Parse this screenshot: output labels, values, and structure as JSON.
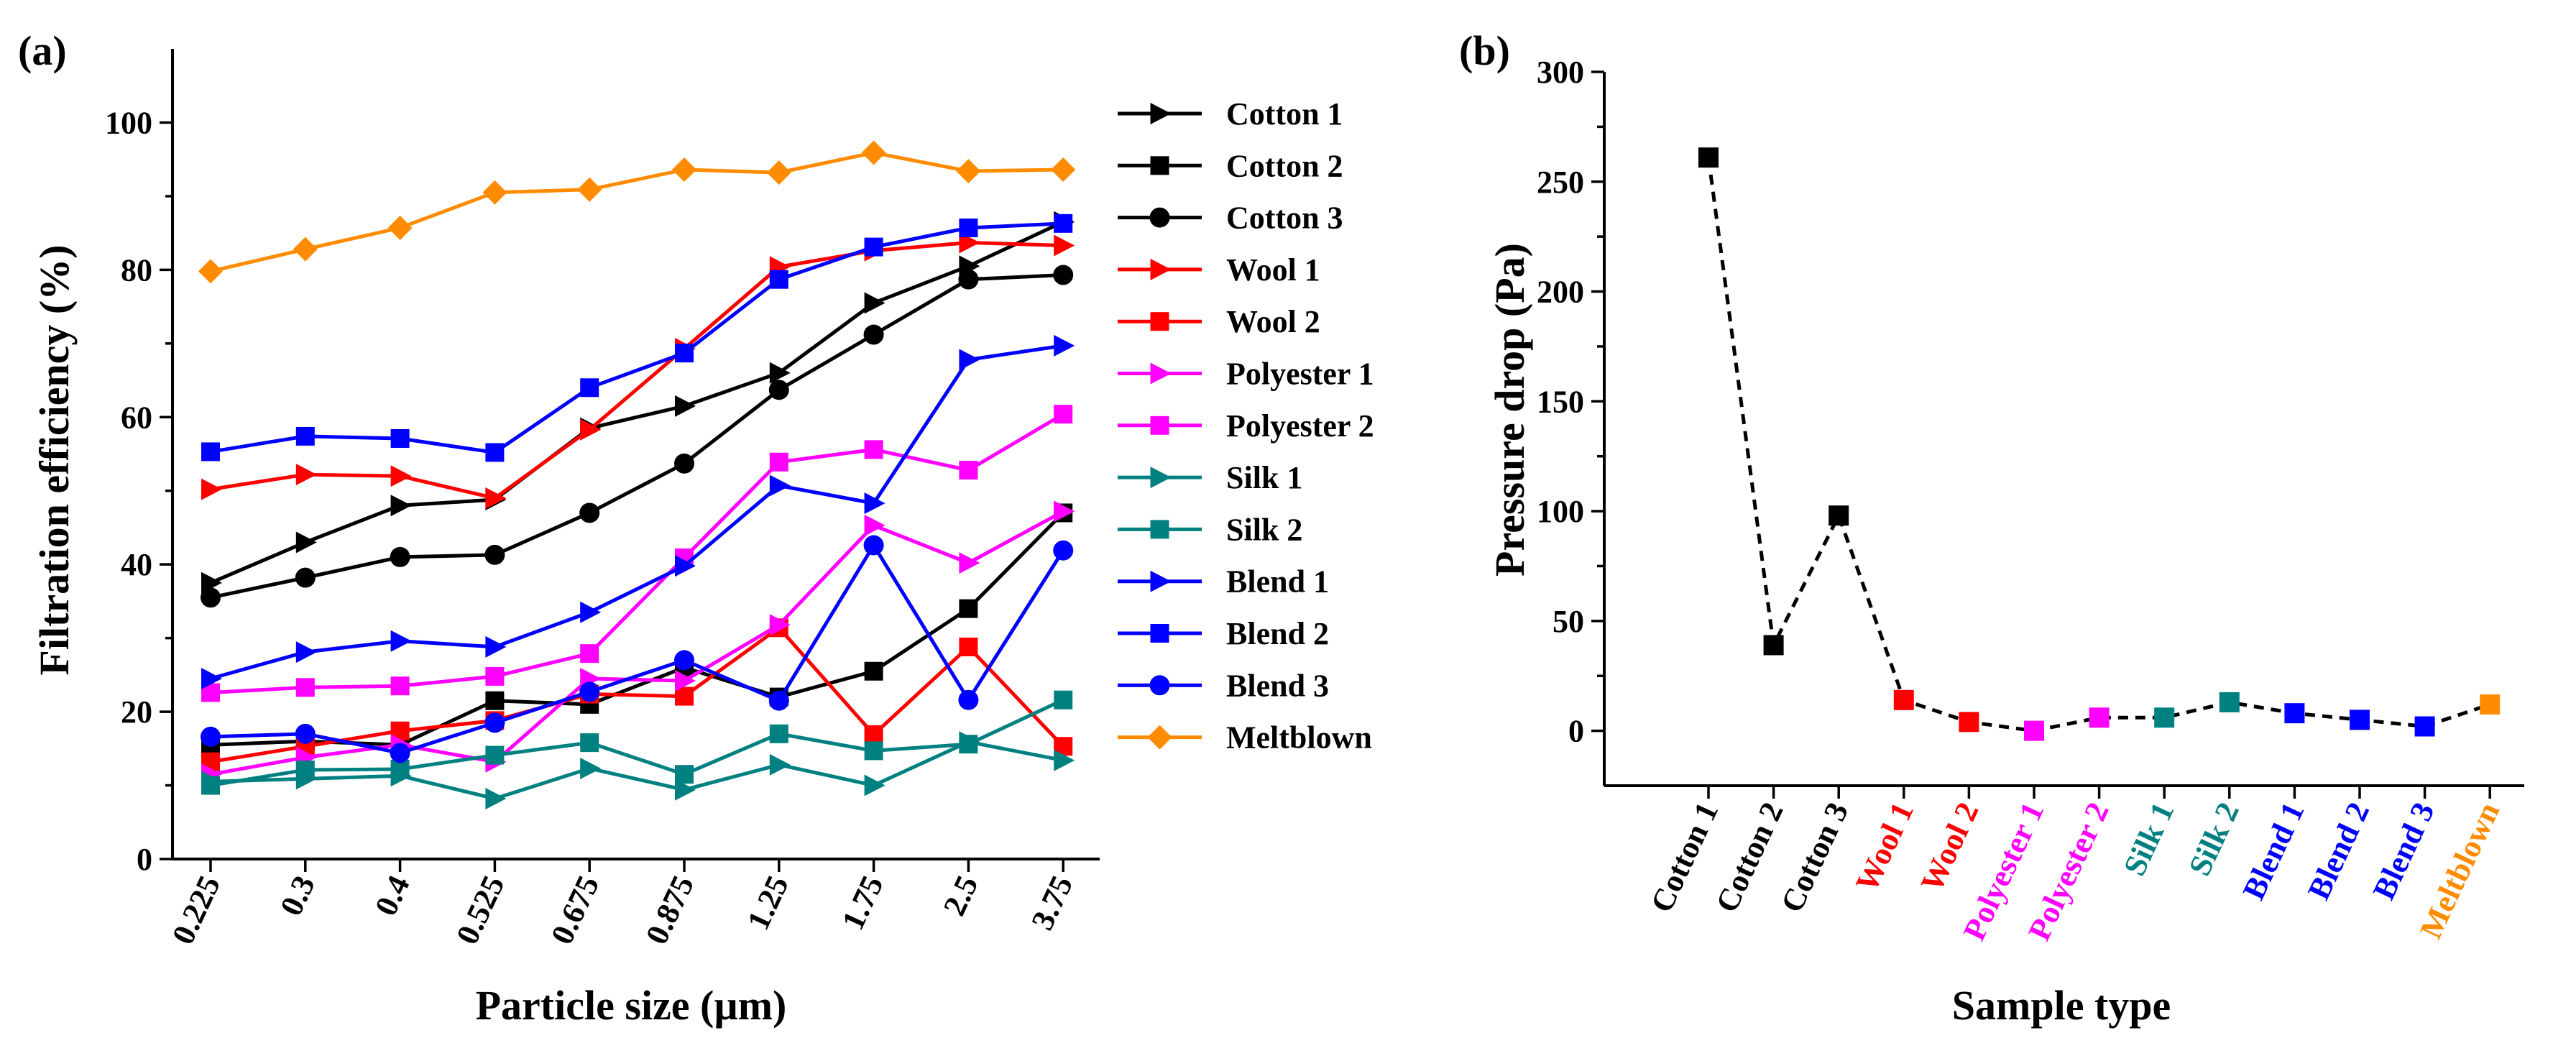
{
  "chart_data": [
    {
      "panel": "(a)",
      "type": "line",
      "title": "",
      "xlabel": "Particle size (µm)",
      "ylabel": "Filtration efficiency (%)",
      "categories": [
        "0.225",
        "0.3",
        "0.4",
        "0.525",
        "0.675",
        "0.875",
        "1.25",
        "1.75",
        "2.5",
        "3.75"
      ],
      "ylim": [
        0,
        110
      ],
      "yticks": [
        "0",
        "20",
        "40",
        "60",
        "80",
        "100"
      ],
      "grid": false,
      "legend_position": "right",
      "series": [
        {
          "name": "Cotton 1",
          "color": "#000000",
          "marker": "triangle-right",
          "values": [
            37.5,
            43,
            48,
            48.8,
            58.5,
            61.5,
            66,
            75.5,
            80.5,
            86.5
          ]
        },
        {
          "name": "Cotton 2",
          "color": "#000000",
          "marker": "square",
          "values": [
            15.5,
            16,
            15.5,
            21.5,
            21,
            26,
            22,
            25.5,
            34,
            47
          ]
        },
        {
          "name": "Cotton 3",
          "color": "#000000",
          "marker": "circle",
          "values": [
            35.5,
            38.2,
            41,
            41.3,
            47,
            53.7,
            63.7,
            71.2,
            78.7,
            79.3
          ]
        },
        {
          "name": "Wool 1",
          "color": "#ff0000",
          "marker": "triangle-right",
          "values": [
            50.2,
            52.2,
            52,
            49,
            58.3,
            69.3,
            80.4,
            82.6,
            83.7,
            83.3
          ]
        },
        {
          "name": "Wool 2",
          "color": "#ff0000",
          "marker": "square",
          "values": [
            13.2,
            15.3,
            17.4,
            18.8,
            22.4,
            22.1,
            31.4,
            16.9,
            28.8,
            15.3
          ]
        },
        {
          "name": "Polyester 1",
          "color": "#ff00ff",
          "marker": "triangle-right",
          "values": [
            11.5,
            13.8,
            15.5,
            13.2,
            24.5,
            24.2,
            31.8,
            45.3,
            40.2,
            47.2
          ]
        },
        {
          "name": "Polyester 2",
          "color": "#ff00ff",
          "marker": "square",
          "values": [
            22.6,
            23.3,
            23.5,
            24.8,
            27.9,
            40.9,
            53.9,
            55.6,
            52.8,
            60.4
          ]
        },
        {
          "name": "Silk 1",
          "color": "#008080",
          "marker": "triangle-right",
          "values": [
            10.5,
            10.9,
            11.3,
            8.2,
            12.3,
            9.4,
            12.8,
            10,
            15.9,
            13.4
          ]
        },
        {
          "name": "Silk 2",
          "color": "#008080",
          "marker": "square",
          "values": [
            10,
            12.1,
            12.2,
            14.1,
            15.8,
            11.5,
            17,
            14.7,
            15.6,
            21.6
          ]
        },
        {
          "name": "Blend 1",
          "color": "#0000ff",
          "marker": "triangle-right",
          "values": [
            24.5,
            28.1,
            29.6,
            28.8,
            33.5,
            39.8,
            50.7,
            48.3,
            67.8,
            69.7
          ]
        },
        {
          "name": "Blend 2",
          "color": "#0000ff",
          "marker": "square",
          "values": [
            55.3,
            57.4,
            57.1,
            55.2,
            64,
            68.7,
            78.7,
            83.1,
            85.7,
            86.3
          ]
        },
        {
          "name": "Blend 3",
          "color": "#0000ff",
          "marker": "circle",
          "values": [
            16.6,
            17,
            14.4,
            18.5,
            22.7,
            27,
            21.5,
            42.6,
            21.6,
            41.9
          ]
        },
        {
          "name": "Meltblown",
          "color": "#ff8c00",
          "marker": "diamond",
          "values": [
            79.8,
            82.8,
            85.7,
            90.5,
            90.9,
            93.6,
            93.2,
            95.9,
            93.4,
            93.6
          ]
        }
      ]
    },
    {
      "panel": "(b)",
      "type": "scatter",
      "title": "",
      "xlabel": "Sample type",
      "ylabel": "Pressure drop (Pa)",
      "ylim": [
        -25,
        300
      ],
      "yticks": [
        "0",
        "50",
        "100",
        "150",
        "200",
        "250",
        "300"
      ],
      "grid": false,
      "connector": "dashed black line",
      "points": [
        {
          "label": "Cotton 1",
          "color": "#000000",
          "value": 261
        },
        {
          "label": "Cotton 2",
          "color": "#000000",
          "value": 39
        },
        {
          "label": "Cotton 3",
          "color": "#000000",
          "value": 98
        },
        {
          "label": "Wool 1",
          "color": "#ff0000",
          "value": 14
        },
        {
          "label": "Wool 2",
          "color": "#ff0000",
          "value": 4
        },
        {
          "label": "Polyester 1",
          "color": "#ff00ff",
          "value": 0
        },
        {
          "label": "Polyester 2",
          "color": "#ff00ff",
          "value": 6
        },
        {
          "label": "Silk 1",
          "color": "#008080",
          "value": 6
        },
        {
          "label": "Silk 2",
          "color": "#008080",
          "value": 13
        },
        {
          "label": "Blend 1",
          "color": "#0000ff",
          "value": 8
        },
        {
          "label": "Blend 2",
          "color": "#0000ff",
          "value": 5
        },
        {
          "label": "Blend 3",
          "color": "#0000ff",
          "value": 2
        },
        {
          "label": "Meltblown",
          "color": "#ff8c00",
          "value": 12
        }
      ]
    }
  ]
}
